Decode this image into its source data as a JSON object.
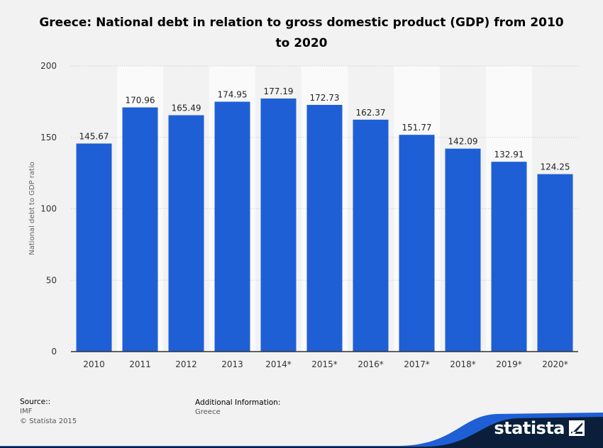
{
  "chart_data": {
    "type": "bar",
    "title": "Greece: National debt in relation to gross domestic product (GDP) from 2010 to 2020",
    "title_line1": "Greece: National debt in relation to gross domestic product (GDP) from 2010",
    "title_line2": "to 2020",
    "ylabel": "National debt to GDP ratio",
    "xlabel": "",
    "ylim": [
      0,
      200
    ],
    "yticks": [
      0,
      50,
      100,
      150,
      200
    ],
    "categories": [
      "2010",
      "2011",
      "2012",
      "2013",
      "2014*",
      "2015*",
      "2016*",
      "2017*",
      "2018*",
      "2019*",
      "2020*"
    ],
    "values": [
      145.67,
      170.96,
      165.49,
      174.95,
      177.19,
      172.73,
      162.37,
      151.77,
      142.09,
      132.91,
      124.25
    ],
    "value_labels": [
      "145.67",
      "170.96",
      "165.49",
      "174.95",
      "177.19",
      "172.73",
      "162.37",
      "151.77",
      "142.09",
      "132.91",
      "124.25"
    ],
    "bar_color": "#1f5fd6",
    "grid": true
  },
  "footer": {
    "source_label": "Source::",
    "source_value": "IMF",
    "copyright": "© Statista 2015",
    "additional_label": "Additional Information:",
    "additional_value": "Greece"
  },
  "brand": {
    "name": "statista",
    "dark_color": "#0b1f3a",
    "accent_color": "#1f5fd6"
  }
}
